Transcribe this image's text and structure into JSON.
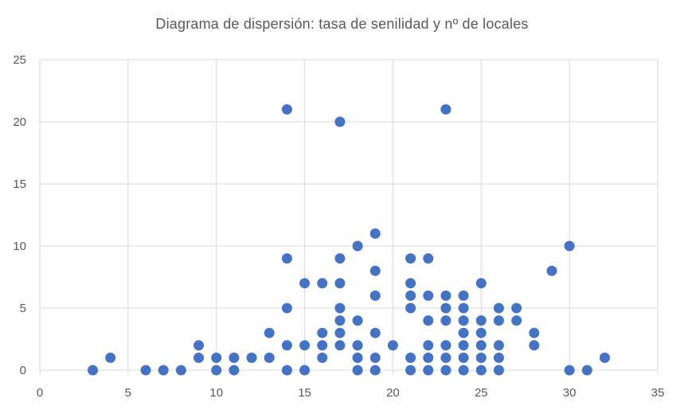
{
  "chart_data": {
    "type": "scatter",
    "title": "Diagrama de dispersión: tasa de senilidad y nº de locales",
    "xlabel": "",
    "ylabel": "",
    "xlim": [
      0,
      35
    ],
    "ylim": [
      0,
      25
    ],
    "x_ticks": [
      0,
      5,
      10,
      15,
      20,
      25,
      30,
      35
    ],
    "y_ticks": [
      0,
      5,
      10,
      15,
      20,
      25
    ],
    "grid": true,
    "marker_color": "#4472C4",
    "series": [
      {
        "points": [
          [
            3,
            0
          ],
          [
            4,
            1
          ],
          [
            6,
            0
          ],
          [
            7,
            0
          ],
          [
            8,
            0
          ],
          [
            9,
            2
          ],
          [
            9,
            1
          ],
          [
            10,
            1
          ],
          [
            10,
            0
          ],
          [
            11,
            1
          ],
          [
            11,
            0
          ],
          [
            12,
            1
          ],
          [
            13,
            3
          ],
          [
            13,
            1
          ],
          [
            14,
            21
          ],
          [
            14,
            9
          ],
          [
            14,
            5
          ],
          [
            14,
            2
          ],
          [
            14,
            0
          ],
          [
            15,
            7
          ],
          [
            15,
            2
          ],
          [
            15,
            0
          ],
          [
            16,
            7
          ],
          [
            16,
            3
          ],
          [
            16,
            2
          ],
          [
            16,
            1
          ],
          [
            17,
            20
          ],
          [
            17,
            9
          ],
          [
            17,
            7
          ],
          [
            17,
            5
          ],
          [
            17,
            4
          ],
          [
            17,
            3
          ],
          [
            17,
            2
          ],
          [
            18,
            10
          ],
          [
            18,
            4
          ],
          [
            18,
            2
          ],
          [
            18,
            1
          ],
          [
            18,
            0
          ],
          [
            19,
            11
          ],
          [
            19,
            8
          ],
          [
            19,
            6
          ],
          [
            19,
            3
          ],
          [
            19,
            1
          ],
          [
            19,
            0
          ],
          [
            20,
            2
          ],
          [
            21,
            9
          ],
          [
            21,
            7
          ],
          [
            21,
            6
          ],
          [
            21,
            5
          ],
          [
            21,
            1
          ],
          [
            21,
            0
          ],
          [
            22,
            9
          ],
          [
            22,
            6
          ],
          [
            22,
            4
          ],
          [
            22,
            2
          ],
          [
            22,
            1
          ],
          [
            22,
            0
          ],
          [
            23,
            21
          ],
          [
            23,
            6
          ],
          [
            23,
            5
          ],
          [
            23,
            4
          ],
          [
            23,
            2
          ],
          [
            23,
            1
          ],
          [
            23,
            0
          ],
          [
            24,
            6
          ],
          [
            24,
            5
          ],
          [
            24,
            4
          ],
          [
            24,
            3
          ],
          [
            24,
            2
          ],
          [
            24,
            1
          ],
          [
            24,
            0
          ],
          [
            25,
            7
          ],
          [
            25,
            4
          ],
          [
            25,
            3
          ],
          [
            25,
            2
          ],
          [
            25,
            1
          ],
          [
            25,
            0
          ],
          [
            26,
            5
          ],
          [
            26,
            4
          ],
          [
            26,
            2
          ],
          [
            26,
            1
          ],
          [
            26,
            0
          ],
          [
            27,
            5
          ],
          [
            27,
            4
          ],
          [
            28,
            3
          ],
          [
            28,
            2
          ],
          [
            29,
            8
          ],
          [
            30,
            10
          ],
          [
            30,
            0
          ],
          [
            31,
            0
          ],
          [
            32,
            1
          ]
        ]
      }
    ]
  }
}
